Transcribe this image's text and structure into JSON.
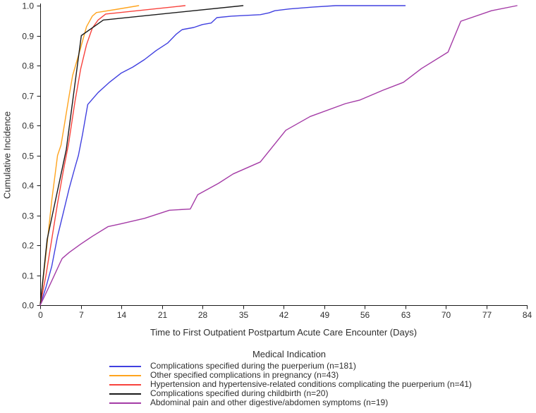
{
  "figure": {
    "background": "#ffffff",
    "text_color": "#2e2e2e",
    "axis_color": "#1a1a1a"
  },
  "chart_data": {
    "type": "line",
    "title": "",
    "xlabel": "Time to First Outpatient Postpartum Acute Care Encounter (Days)",
    "ylabel": "Cumulative Incidence",
    "xlim": [
      0,
      84
    ],
    "ylim": [
      0.0,
      1.0
    ],
    "x_ticks": [
      "0",
      "7",
      "14",
      "21",
      "28",
      "35",
      "42",
      "49",
      "56",
      "63",
      "70",
      "77",
      "84"
    ],
    "y_ticks": [
      "0.0",
      "0.1",
      "0.2",
      "0.3",
      "0.4",
      "0.5",
      "0.6",
      "0.7",
      "0.8",
      "0.9",
      "1.0"
    ],
    "grid": false,
    "legend": {
      "title": "Medical Indication",
      "position": "bottom"
    },
    "series": [
      {
        "label": "Complications specified during the puerperium (n=181)",
        "n": 181,
        "color": "#4040e0",
        "points": [
          [
            0,
            0
          ],
          [
            1,
            0.06
          ],
          [
            2,
            0.13
          ],
          [
            3,
            0.23
          ],
          [
            4,
            0.31
          ],
          [
            5,
            0.39
          ],
          [
            6,
            0.46
          ],
          [
            6.6,
            0.5
          ],
          [
            7.3,
            0.57
          ],
          [
            8.2,
            0.67
          ],
          [
            10,
            0.71
          ],
          [
            12,
            0.745
          ],
          [
            14,
            0.775
          ],
          [
            16,
            0.795
          ],
          [
            18,
            0.82
          ],
          [
            20,
            0.85
          ],
          [
            22,
            0.875
          ],
          [
            23.5,
            0.905
          ],
          [
            24.5,
            0.92
          ],
          [
            26.5,
            0.927
          ],
          [
            28,
            0.937
          ],
          [
            29.5,
            0.942
          ],
          [
            30.5,
            0.96
          ],
          [
            33,
            0.965
          ],
          [
            38,
            0.97
          ],
          [
            39.5,
            0.976
          ],
          [
            40.5,
            0.983
          ],
          [
            43,
            0.989
          ],
          [
            47,
            0.995
          ],
          [
            51,
            1.0
          ],
          [
            63,
            1.0
          ]
        ]
      },
      {
        "label": "Other specified complications in pregnancy (n=43)",
        "n": 43,
        "color": "#ffa41e",
        "points": [
          [
            0,
            0
          ],
          [
            1,
            0.17
          ],
          [
            2,
            0.35
          ],
          [
            3,
            0.5
          ],
          [
            3.6,
            0.535
          ],
          [
            5,
            0.7
          ],
          [
            5.6,
            0.767
          ],
          [
            7,
            0.86
          ],
          [
            8,
            0.93
          ],
          [
            9,
            0.965
          ],
          [
            9.7,
            0.977
          ],
          [
            13,
            0.987
          ],
          [
            17,
            1.0
          ]
        ]
      },
      {
        "label": "Hypertension and hypertensive-related conditions complicating the puerperium (n=41)",
        "n": 41,
        "color": "#f8423c",
        "points": [
          [
            0,
            0
          ],
          [
            1,
            0.1
          ],
          [
            2,
            0.22
          ],
          [
            3,
            0.34
          ],
          [
            4,
            0.45
          ],
          [
            4.9,
            0.54
          ],
          [
            6,
            0.68
          ],
          [
            7,
            0.79
          ],
          [
            8,
            0.87
          ],
          [
            9,
            0.925
          ],
          [
            10,
            0.952
          ],
          [
            11.3,
            0.972
          ],
          [
            25,
            1.0
          ]
        ]
      },
      {
        "label": "Complications specified during childbirth (n=20)",
        "n": 20,
        "color": "#1a1a1a",
        "points": [
          [
            0,
            0
          ],
          [
            1.2,
            0.22
          ],
          [
            4.5,
            0.52
          ],
          [
            7.1,
            0.9
          ],
          [
            10.9,
            0.952
          ],
          [
            35,
            1.0
          ]
        ]
      },
      {
        "label": "Abdominal pain and other digestive/abdomen symptoms (n=19)",
        "n": 19,
        "color": "#a43ba6",
        "points": [
          [
            0,
            0
          ],
          [
            1,
            0.04
          ],
          [
            2.2,
            0.09
          ],
          [
            3.4,
            0.14
          ],
          [
            3.8,
            0.156
          ],
          [
            5,
            0.176
          ],
          [
            7,
            0.204
          ],
          [
            9,
            0.23
          ],
          [
            11.7,
            0.262
          ],
          [
            14,
            0.272
          ],
          [
            18,
            0.29
          ],
          [
            22.3,
            0.317
          ],
          [
            25.9,
            0.321
          ],
          [
            27.2,
            0.369
          ],
          [
            30.8,
            0.407
          ],
          [
            33.3,
            0.438
          ],
          [
            38,
            0.478
          ],
          [
            42.4,
            0.584
          ],
          [
            46.6,
            0.63
          ],
          [
            52.7,
            0.673
          ],
          [
            55.2,
            0.685
          ],
          [
            59.2,
            0.718
          ],
          [
            62.7,
            0.744
          ],
          [
            65.8,
            0.79
          ],
          [
            70.4,
            0.845
          ],
          [
            72.6,
            0.948
          ],
          [
            77.9,
            0.983
          ],
          [
            82.3,
            1.0
          ]
        ]
      }
    ]
  }
}
